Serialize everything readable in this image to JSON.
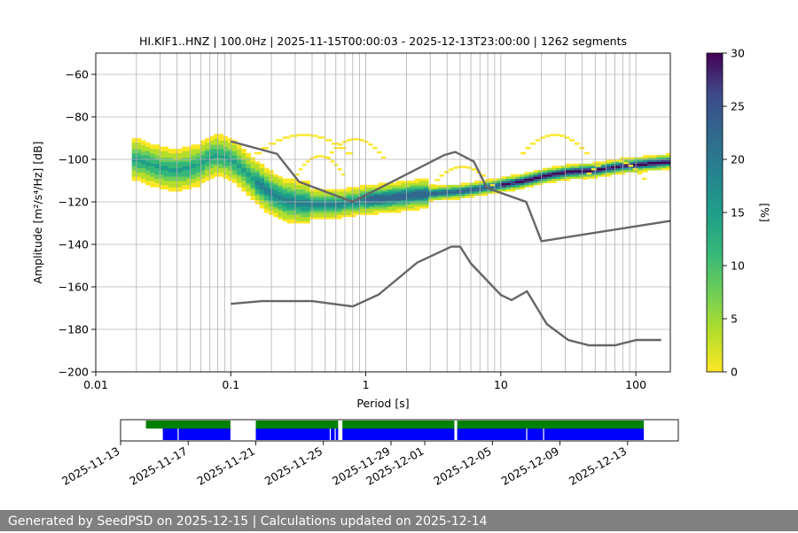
{
  "chart_data": [
    {
      "type": "heatmap",
      "title": "HI.KIF1..HNZ | 100.0Hz | 2025-11-15T00:00:03 - 2025-12-13T23:00:00 | 1262 segments",
      "xlabel": "Period [s]",
      "ylabel": "Amplitude [m²/s⁴/Hz] [dB]",
      "xscale": "log",
      "xlim": [
        0.01,
        180
      ],
      "ylim": [
        -200,
        -50
      ],
      "x_ticks": [
        {
          "v": 0.01,
          "label": "0.01"
        },
        {
          "v": 0.1,
          "label": "0.1"
        },
        {
          "v": 1,
          "label": "1"
        },
        {
          "v": 10,
          "label": "10"
        },
        {
          "v": 100,
          "label": "100"
        }
      ],
      "y_ticks": [
        -200,
        -180,
        -160,
        -140,
        -120,
        -100,
        -80,
        -60
      ],
      "grid": "vertical at each minor period tick and horizontal at each major dB tick",
      "colormap": "viridis_r",
      "colorbar": {
        "label": "[%]",
        "min": 0,
        "max": 30,
        "ticks": [
          0,
          5,
          10,
          15,
          20,
          25,
          30
        ]
      },
      "mode_curve": {
        "period": [
          0.02,
          0.025,
          0.03,
          0.04,
          0.05,
          0.06,
          0.07,
          0.08,
          0.1,
          0.12,
          0.15,
          0.2,
          0.25,
          0.3,
          0.4,
          0.5,
          0.6,
          0.8,
          1,
          1.5,
          2,
          3,
          5,
          8,
          10,
          15,
          20,
          30,
          50,
          80,
          120,
          180
        ],
        "db": [
          -100,
          -102,
          -104,
          -105,
          -104,
          -102,
          -99,
          -98,
          -100,
          -104,
          -110,
          -116,
          -119,
          -120,
          -121,
          -121,
          -121,
          -120,
          -119,
          -118,
          -117,
          -116,
          -115,
          -113,
          -112,
          -110,
          -108,
          -106,
          -105,
          -103,
          -102,
          -101
        ]
      },
      "nhnm": {
        "period": [
          0.1,
          0.22,
          0.32,
          0.8,
          3.8,
          4.6,
          6.3,
          7.9,
          15.4,
          20,
          354.8
        ],
        "db": [
          -91.5,
          -97.4,
          -110.5,
          -120,
          -98,
          -96.5,
          -101,
          -113.5,
          -120,
          -138.5,
          -126
        ]
      },
      "nlnm": {
        "period": [
          0.1,
          0.17,
          0.4,
          0.8,
          1.24,
          2.4,
          4.3,
          5,
          6,
          10,
          12,
          15.6,
          21.9,
          31.6,
          45,
          70,
          101,
          154
        ],
        "db": [
          -168,
          -166.7,
          -166.7,
          -169.2,
          -163.7,
          -148.6,
          -141.1,
          -141.1,
          -149,
          -163.8,
          -166.2,
          -162.1,
          -177.5,
          -185,
          -187.5,
          -187.5,
          -185,
          -185
        ]
      }
    },
    {
      "type": "timeline",
      "x_ticks": [
        "2025-11-13",
        "2025-11-17",
        "2025-11-21",
        "2025-11-25",
        "2025-11-29",
        "2025-12-01",
        "2025-12-05",
        "2025-12-09",
        "2025-12-13"
      ],
      "xlim": [
        "2025-11-13",
        "2025-12-16"
      ],
      "data_bar": {
        "color": "#008000",
        "spans": [
          [
            "2025-11-14T12:00",
            "2025-11-19T12:00"
          ],
          [
            "2025-11-21T00:00",
            "2025-11-25T21:00"
          ],
          [
            "2025-11-26T03:00",
            "2025-12-02T18:00"
          ],
          [
            "2025-12-02T22:00",
            "2025-12-13T23:00"
          ]
        ]
      },
      "psd_bar": {
        "color": "#0000ff",
        "spans": [
          [
            "2025-11-15T12:00",
            "2025-11-19T12:00"
          ],
          [
            "2025-11-21T00:00",
            "2025-11-25T21:00"
          ],
          [
            "2025-11-26T03:00",
            "2025-12-02T18:00"
          ],
          [
            "2025-12-02T22:00",
            "2025-12-13T23:00"
          ]
        ],
        "gaps": [
          "2025-11-16T09:00",
          "2025-11-25T09:00",
          "2025-11-25T16:00",
          "2025-12-07T00:00",
          "2025-12-08T00:00"
        ]
      }
    }
  ],
  "footer": {
    "text": "Generated by SeedPSD on 2025-12-15 | Calculations updated on 2025-12-14"
  }
}
